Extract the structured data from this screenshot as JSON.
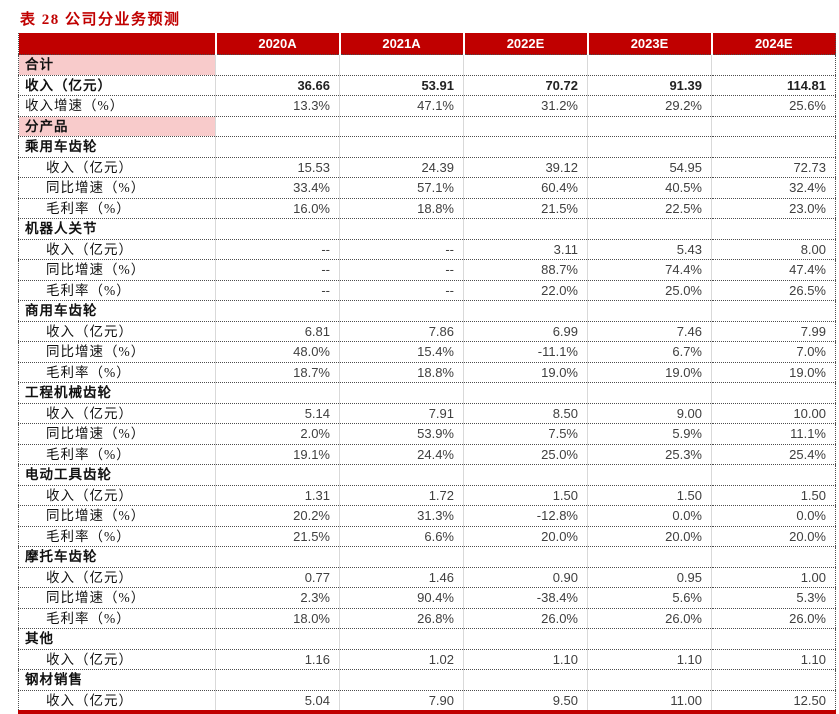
{
  "title": "表 28 公司分业务预测",
  "colors": {
    "header_bg": "#c00000",
    "title_red": "#c00000",
    "pink_band": "#f8cbcb",
    "bottom_border": "#c00000",
    "column_separator": "#d9d9d9",
    "dotted_border": "#4d4d4d"
  },
  "table": {
    "columns": [
      "",
      "2020A",
      "2021A",
      "2022E",
      "2023E",
      "2024E"
    ],
    "rows": [
      {
        "label": "合计",
        "type": "pink",
        "values": [
          "",
          "",
          "",
          "",
          ""
        ]
      },
      {
        "label": "收入（亿元）",
        "type": "bold",
        "values": [
          "36.66",
          "53.91",
          "70.72",
          "91.39",
          "114.81"
        ]
      },
      {
        "label": "收入增速（%）",
        "type": "plain",
        "values": [
          "13.3%",
          "47.1%",
          "31.2%",
          "29.2%",
          "25.6%"
        ]
      },
      {
        "label": "分产品",
        "type": "pink",
        "values": [
          "",
          "",
          "",
          "",
          ""
        ]
      },
      {
        "label": "乘用车齿轮",
        "type": "section",
        "values": [
          "",
          "",
          "",
          "",
          ""
        ]
      },
      {
        "label": "收入（亿元）",
        "type": "indent",
        "values": [
          "15.53",
          "24.39",
          "39.12",
          "54.95",
          "72.73"
        ]
      },
      {
        "label": "同比增速（%）",
        "type": "indent",
        "values": [
          "33.4%",
          "57.1%",
          "60.4%",
          "40.5%",
          "32.4%"
        ]
      },
      {
        "label": "毛利率（%）",
        "type": "indent",
        "values": [
          "16.0%",
          "18.8%",
          "21.5%",
          "22.5%",
          "23.0%"
        ]
      },
      {
        "label": "机器人关节",
        "type": "section",
        "values": [
          "",
          "",
          "",
          "",
          ""
        ]
      },
      {
        "label": "收入（亿元）",
        "type": "indent",
        "values": [
          "--",
          "--",
          "3.11",
          "5.43",
          "8.00"
        ]
      },
      {
        "label": "同比增速（%）",
        "type": "indent",
        "values": [
          "--",
          "--",
          "88.7%",
          "74.4%",
          "47.4%"
        ]
      },
      {
        "label": "毛利率（%）",
        "type": "indent",
        "values": [
          "--",
          "--",
          "22.0%",
          "25.0%",
          "26.5%"
        ]
      },
      {
        "label": "商用车齿轮",
        "type": "section",
        "values": [
          "",
          "",
          "",
          "",
          ""
        ]
      },
      {
        "label": "收入（亿元）",
        "type": "indent",
        "values": [
          "6.81",
          "7.86",
          "6.99",
          "7.46",
          "7.99"
        ]
      },
      {
        "label": "同比增速（%）",
        "type": "indent",
        "values": [
          "48.0%",
          "15.4%",
          "-11.1%",
          "6.7%",
          "7.0%"
        ]
      },
      {
        "label": "毛利率（%）",
        "type": "indent",
        "values": [
          "18.7%",
          "18.8%",
          "19.0%",
          "19.0%",
          "19.0%"
        ]
      },
      {
        "label": "工程机械齿轮",
        "type": "section",
        "values": [
          "",
          "",
          "",
          "",
          ""
        ]
      },
      {
        "label": "收入（亿元）",
        "type": "indent",
        "values": [
          "5.14",
          "7.91",
          "8.50",
          "9.00",
          "10.00"
        ]
      },
      {
        "label": "同比增速（%）",
        "type": "indent",
        "values": [
          "2.0%",
          "53.9%",
          "7.5%",
          "5.9%",
          "11.1%"
        ]
      },
      {
        "label": "毛利率（%）",
        "type": "indent",
        "values": [
          "19.1%",
          "24.4%",
          "25.0%",
          "25.3%",
          "25.4%"
        ]
      },
      {
        "label": "电动工具齿轮",
        "type": "section",
        "values": [
          "",
          "",
          "",
          "",
          ""
        ]
      },
      {
        "label": "收入（亿元）",
        "type": "indent",
        "values": [
          "1.31",
          "1.72",
          "1.50",
          "1.50",
          "1.50"
        ]
      },
      {
        "label": "同比增速（%）",
        "type": "indent",
        "values": [
          "20.2%",
          "31.3%",
          "-12.8%",
          "0.0%",
          "0.0%"
        ]
      },
      {
        "label": "毛利率（%）",
        "type": "indent",
        "values": [
          "21.5%",
          "6.6%",
          "20.0%",
          "20.0%",
          "20.0%"
        ]
      },
      {
        "label": "摩托车齿轮",
        "type": "section",
        "values": [
          "",
          "",
          "",
          "",
          ""
        ]
      },
      {
        "label": "收入（亿元）",
        "type": "indent",
        "values": [
          "0.77",
          "1.46",
          "0.90",
          "0.95",
          "1.00"
        ]
      },
      {
        "label": "同比增速（%）",
        "type": "indent",
        "values": [
          "2.3%",
          "90.4%",
          "-38.4%",
          "5.6%",
          "5.3%"
        ]
      },
      {
        "label": "毛利率（%）",
        "type": "indent",
        "values": [
          "18.0%",
          "26.8%",
          "26.0%",
          "26.0%",
          "26.0%"
        ]
      },
      {
        "label": "其他",
        "type": "section",
        "values": [
          "",
          "",
          "",
          "",
          ""
        ]
      },
      {
        "label": "收入（亿元）",
        "type": "indent",
        "values": [
          "1.16",
          "1.02",
          "1.10",
          "1.10",
          "1.10"
        ]
      },
      {
        "label": "钢材销售",
        "type": "section",
        "values": [
          "",
          "",
          "",
          "",
          ""
        ]
      },
      {
        "label": "收入（亿元）",
        "type": "indent",
        "values": [
          "5.04",
          "7.90",
          "9.50",
          "11.00",
          "12.50"
        ]
      }
    ]
  }
}
